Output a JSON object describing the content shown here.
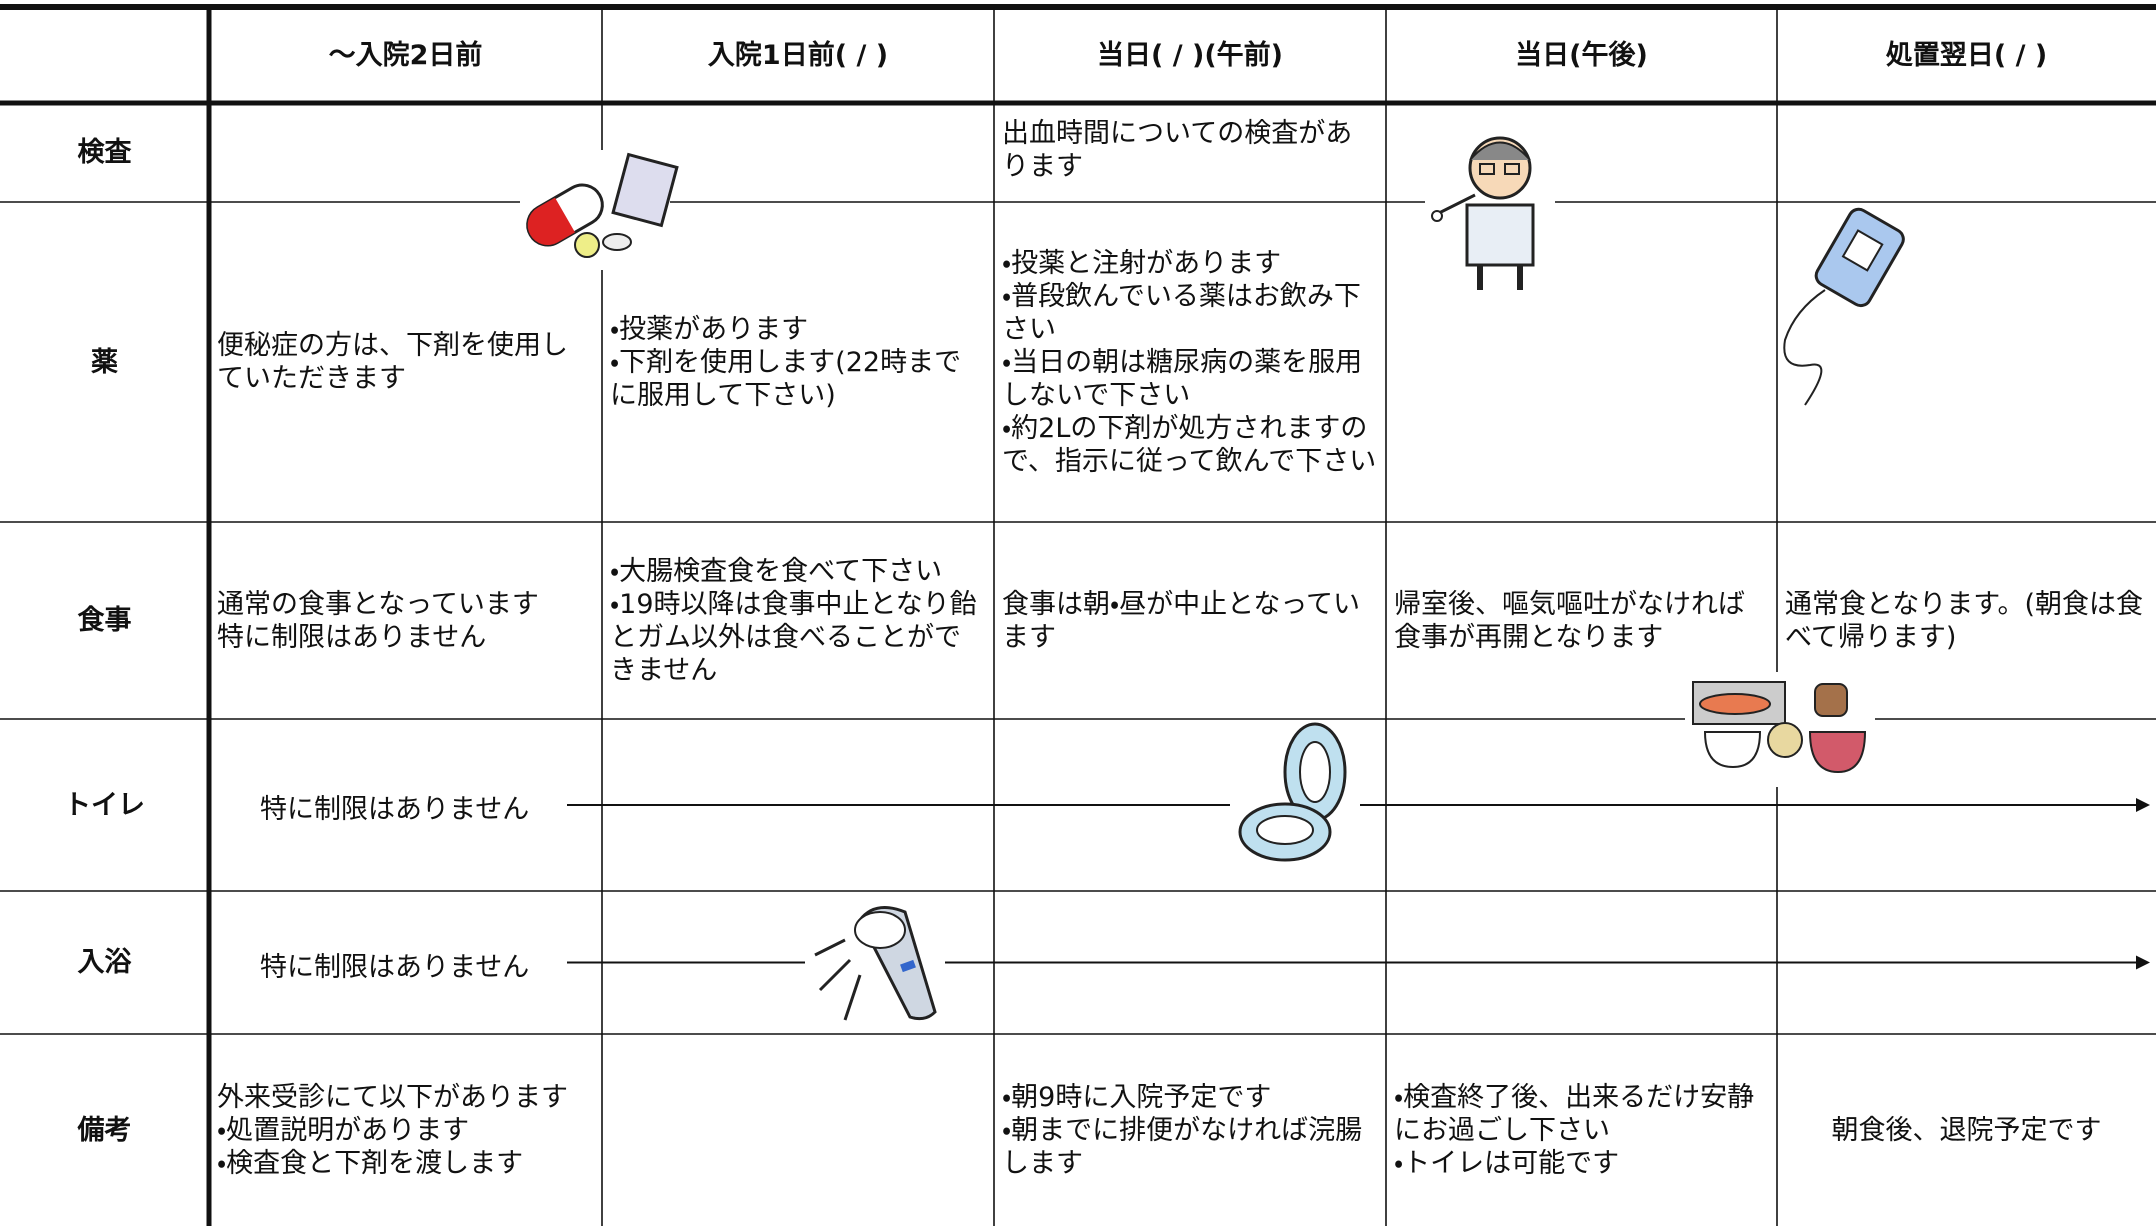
{
  "header": {
    "columns": [
      "〜入院2日前",
      "入院1日前( / )",
      "当日( / )(午前)",
      "当日(午後)",
      "処置翌日( / )"
    ]
  },
  "rows": [
    {
      "label": "検査",
      "cells": [
        null,
        null,
        "出血時間についての検査があります",
        null,
        null
      ]
    },
    {
      "label": "薬",
      "cells": [
        "便秘症の方は、下剤を使用していただきます",
        "・投薬があります\n・下剤を使用します(22時までに服用して下さい)",
        "・投薬と注射があります\n・普段飲んでいる薬はお飲み下さい\n・当日の朝は糖尿病の薬を服用しないで下さい\n・約2Lの下剤が処方されますので、指示に従って飲んで下さい",
        null,
        null
      ]
    },
    {
      "label": "食事",
      "cells": [
        "通常の食事となっています\n特に制限はありません",
        "・大腸検査食を食べて下さい\n・19時以降は食事中止となり飴とガム以外は食べることができません",
        "食事は朝・昼が中止となっています",
        "帰室後、嘔気嘔吐がなければ食事が再開となります",
        "通常食となります。(朝食は食べて帰ります)"
      ]
    },
    {
      "label": "トイレ",
      "cells": [
        "特に制限はありません",
        null,
        null,
        null,
        null
      ],
      "arrow": true
    },
    {
      "label": "入浴",
      "cells": [
        "特に制限はありません",
        null,
        null,
        null,
        null
      ],
      "arrow": true
    },
    {
      "label": "備考",
      "cells": [
        "外来受診にて以下があります\n・処置説明があります\n・検査食と下剤を渡します",
        null,
        "・朝9時に入院予定です\n・朝までに排便がなければ浣腸します",
        "・検査終了後、出来るだけ安静にお過ごし下さい\n・トイレは可能です",
        "朝食後、退院予定です"
      ]
    }
  ]
}
